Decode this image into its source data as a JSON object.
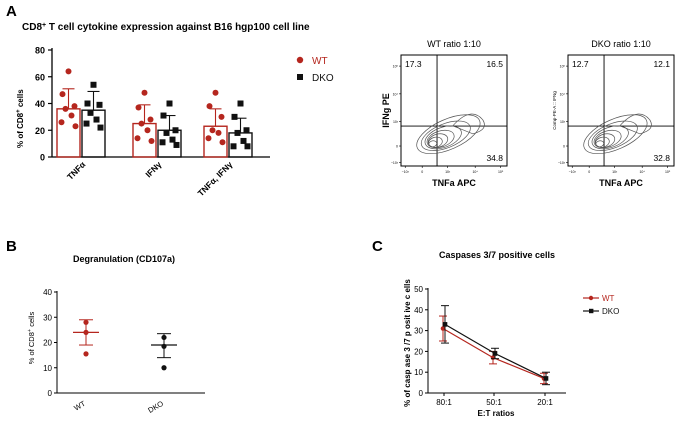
{
  "figure": {
    "panel_labels": [
      "A",
      "B",
      "C"
    ],
    "title_prefix": "CD8",
    "title_sup": "+",
    "title_rest": " T cell cytokine expression against B16 hgp100 cell line"
  },
  "colors": {
    "wt": "#b5261e",
    "dko": "#111111",
    "flow_contour": "#555555"
  },
  "chart_data": [
    {
      "id": "panelA_bar",
      "type": "bar",
      "title": "CD8+ T cell cytokine expression against B16 hgp100 cell line",
      "ylabel_main": "% of CD8",
      "ylabel_sup": "+",
      "ylabel_tail": " cells",
      "ylim": [
        0,
        80
      ],
      "yticks": [
        "0",
        "20",
        "40",
        "60",
        "80"
      ],
      "categories": [
        "TNFα",
        "IFNγ",
        "TNFα, IFNγ"
      ],
      "series": [
        {
          "name": "WT",
          "color": "#b5261e",
          "marker": "circle",
          "values": [
            36,
            25,
            23
          ],
          "sd": [
            15,
            14,
            13
          ],
          "points": [
            [
              64,
              47,
              38,
              36,
              31,
              26,
              23
            ],
            [
              48,
              37,
              28,
              25,
              20,
              14,
              12
            ],
            [
              48,
              38,
              30,
              20,
              18,
              14,
              11
            ]
          ]
        },
        {
          "name": "DKO",
          "color": "#111111",
          "marker": "square",
          "values": [
            35,
            20,
            18
          ],
          "sd": [
            14,
            11,
            11
          ],
          "points": [
            [
              54,
              40,
              39,
              33,
              28,
              25,
              22
            ],
            [
              40,
              31,
              20,
              18,
              13,
              11,
              9
            ],
            [
              40,
              30,
              20,
              18,
              12,
              8,
              8
            ]
          ]
        }
      ]
    },
    {
      "id": "panelB_scatter",
      "type": "scatter",
      "title": "Degranulation (CD107a)",
      "ylabel_main": "% of CD8",
      "ylabel_sup": "+",
      "ylabel_tail": " cells",
      "ylim": [
        0,
        40
      ],
      "yticks": [
        "0",
        "10",
        "20",
        "30",
        "40"
      ],
      "categories": [
        "WT",
        "DKO"
      ],
      "series": [
        {
          "name": "WT",
          "color": "#b5261e",
          "mean": 24,
          "err": [
            19,
            29
          ],
          "points": [
            28,
            24,
            15.5
          ]
        },
        {
          "name": "DKO",
          "color": "#111111",
          "mean": 19,
          "err": [
            14,
            23.5
          ],
          "points": [
            22,
            18.5,
            10
          ]
        }
      ]
    },
    {
      "id": "panelC_line",
      "type": "line",
      "title": "Caspases 3/7 positive cells",
      "xlabel": "E:T ratios",
      "ylabel": "% of casp ase 3 /7 p osit ive c ells",
      "ylim": [
        0,
        50
      ],
      "yticks": [
        "0",
        "10",
        "20",
        "30",
        "40",
        "50"
      ],
      "categories": [
        "80:1",
        "50:1",
        "20:1"
      ],
      "series": [
        {
          "name": "WT",
          "color": "#b5261e",
          "values": [
            31,
            17,
            7
          ],
          "err": [
            6,
            3,
            2.5
          ]
        },
        {
          "name": "DKO",
          "color": "#111111",
          "values": [
            33,
            19,
            7
          ],
          "err": [
            9,
            2.5,
            3
          ]
        }
      ]
    },
    {
      "id": "panelA_flow_wt",
      "type": "contour",
      "title": "WT ratio 1:10",
      "xlabel": "TNFa APC",
      "ylabel": "IFNg PE",
      "quadrants": [
        "17.3",
        "16.5",
        "34.8"
      ],
      "yticks": [
        "10⁵",
        "10⁴",
        "10³",
        "0",
        "−10³"
      ],
      "xticks": [
        "−10³",
        "0",
        "10³",
        "10⁴",
        "10⁵"
      ]
    },
    {
      "id": "panelA_flow_dko",
      "type": "contour",
      "title": "DKO ratio 1:10",
      "xlabel": "TNFa APC",
      "ylabel": "Comp-PE-A :: IFNg",
      "quadrants": [
        "12.7",
        "12.1",
        "32.8"
      ],
      "yticks": [
        "10⁵",
        "10⁴",
        "10³",
        "0",
        "−10³"
      ],
      "xticks": [
        "−10³",
        "0",
        "10³",
        "10⁴",
        "10⁵"
      ]
    }
  ]
}
